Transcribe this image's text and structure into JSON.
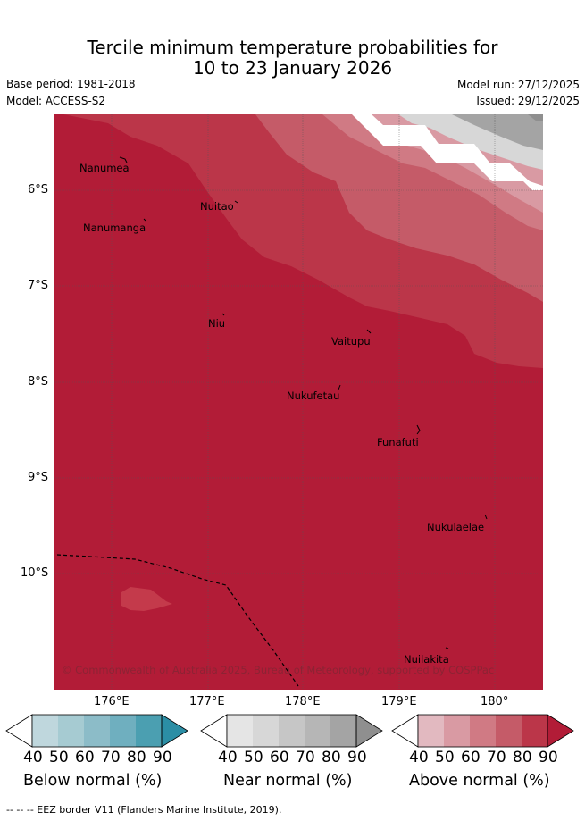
{
  "title": {
    "line1": "Tercile minimum temperature probabilities for",
    "line2": "10 to 23 January 2026"
  },
  "meta": {
    "base_period": "Base period: 1981-2018",
    "model": "Model: ACCESS-S2",
    "model_run": "Model run: 27/12/2025",
    "issued": "Issued: 29/12/2025"
  },
  "map": {
    "lat_labels": [
      "6°S",
      "7°S",
      "8°S",
      "9°S",
      "10°S"
    ],
    "lon_labels": [
      "176°E",
      "177°E",
      "178°E",
      "179°E",
      "180°"
    ],
    "places": [
      "Nanumea",
      "Nuitao",
      "Nanumanga",
      "Niu",
      "Vaitupu",
      "Nukufetau",
      "Funafuti",
      "Nukulaelae",
      "Nuilakita"
    ],
    "copyright": "© Commonwealth of Australia 2025, Bureau of Meteorology, supported by COSPPac"
  },
  "colorbars": {
    "below": {
      "title": "Below normal (%)",
      "ticks": [
        "40",
        "50",
        "60",
        "70",
        "80",
        "90"
      ],
      "colors": [
        "#bfd7dd",
        "#a6cbd2",
        "#8cbcc8",
        "#6fafbf",
        "#4b9fb1",
        "#2b8ea5"
      ]
    },
    "near": {
      "title": "Near normal (%)",
      "ticks": [
        "40",
        "50",
        "60",
        "70",
        "80",
        "90"
      ],
      "colors": [
        "#e5e5e5",
        "#d7d7d7",
        "#c6c6c6",
        "#b6b6b6",
        "#a4a4a4",
        "#8f8f8f"
      ]
    },
    "above": {
      "title": "Above normal (%)",
      "ticks": [
        "40",
        "50",
        "60",
        "70",
        "80",
        "90"
      ],
      "colors": [
        "#e2b9c0",
        "#d99aa3",
        "#d07a84",
        "#c55b68",
        "#bb3649",
        "#b21c37"
      ]
    }
  },
  "footnote": "--  --  -- EEZ border V11 (Flanders Marine Institute, 2019)."
}
